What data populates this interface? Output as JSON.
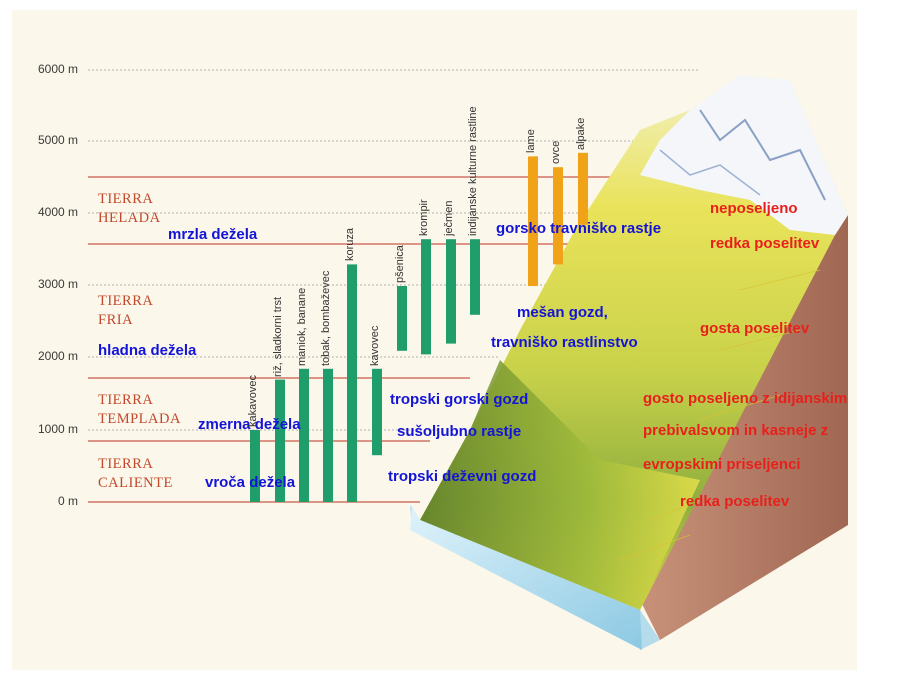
{
  "axis": {
    "unit_ticks": [
      "6000 m",
      "5000 m",
      "4000 m",
      "3000 m",
      "2000 m",
      "1000 m",
      "0 m"
    ],
    "tick_values": [
      6000,
      5000,
      4000,
      3000,
      2000,
      1000,
      0
    ]
  },
  "zones": {
    "helada": {
      "line1": "TIERRA",
      "line2": "HELADA"
    },
    "fria": {
      "line1": "TIERRA",
      "line2": "FRIA"
    },
    "templada": {
      "line1": "TIERRA",
      "line2": "TEMPLADA"
    },
    "caliente": {
      "line1": "TIERRA",
      "line2": "CALIENTE"
    }
  },
  "zone_labels": {
    "mrzla": "mrzla dežela",
    "hladna": "hladna dežela",
    "zmerna": "zmerna dežela",
    "vroca": "vroča dežela"
  },
  "vegetation": {
    "gorsko": "gorsko travniško rastje",
    "mesan_1": "mešan gozd,",
    "mesan_2": "travniško rastlinstvo",
    "tropski_gorski": "tropski gorski gozd",
    "susoljubno": "sušoljubno rastje",
    "tropski_dezevni": "tropski deževni gozd"
  },
  "settlement": {
    "neposeljeno": "neposeljeno",
    "redka_top": "redka poselitev",
    "gosta": "gosta poselitev",
    "gosto_1": "gosto poseljeno z idijanskim",
    "gosto_2": "prebivalsvom in kasneje z",
    "gosto_3": "evropskimi priseljenci",
    "redka_bottom": "redka poselitev"
  },
  "crops": [
    {
      "label": "kakavovec",
      "from": 0,
      "to": 1000,
      "color": "#1f9e6c"
    },
    {
      "label": "riž, sladkorni trst",
      "from": 0,
      "to": 1700,
      "color": "#1f9e6c"
    },
    {
      "label": "maniok, banane",
      "from": 0,
      "to": 1850,
      "color": "#1f9e6c"
    },
    {
      "label": "tobak, bombaževec",
      "from": 0,
      "to": 1850,
      "color": "#1f9e6c"
    },
    {
      "label": "koruza",
      "from": 0,
      "to": 3300,
      "color": "#1f9e6c"
    },
    {
      "label": "kavovec",
      "from": 650,
      "to": 1850,
      "color": "#1f9e6c"
    },
    {
      "label": "pšenica",
      "from": 2100,
      "to": 3000,
      "color": "#1f9e6c"
    },
    {
      "label": "krompir",
      "from": 2050,
      "to": 3650,
      "color": "#1f9e6c"
    },
    {
      "label": "ječmen",
      "from": 2200,
      "to": 3650,
      "color": "#1f9e6c"
    },
    {
      "label": "indijanske kulturne rastline",
      "from": 2600,
      "to": 3650,
      "color": "#1f9e6c"
    },
    {
      "label": "lame",
      "from": 3000,
      "to": 4800,
      "color": "#f0a318"
    },
    {
      "label": "ovce",
      "from": 3300,
      "to": 4650,
      "color": "#f0a318"
    },
    {
      "label": "alpake",
      "from": 3850,
      "to": 4850,
      "color": "#f0a318"
    }
  ]
}
